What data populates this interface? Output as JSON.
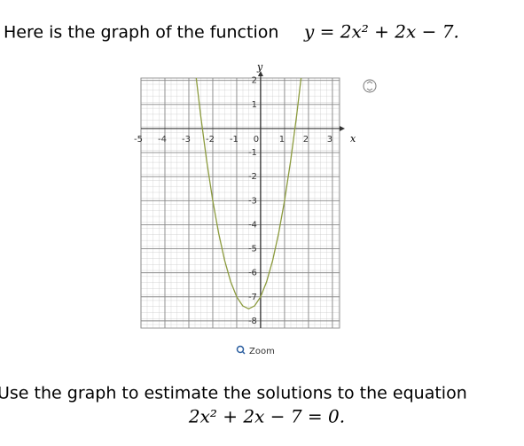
{
  "question": {
    "text": "Here is the graph of the function",
    "equation": "y = 2x² + 2x − 7."
  },
  "chart_data": {
    "type": "line",
    "x_label": "x",
    "y_label": "y",
    "x": [
      -2.7,
      -2.5,
      -2.25,
      -2,
      -1.75,
      -1.5,
      -1.25,
      -1,
      -0.75,
      -0.5,
      -0.25,
      0,
      0.25,
      0.5,
      0.75,
      1,
      1.25,
      1.5,
      1.7
    ],
    "series": [
      {
        "color": "#8c9b3e",
        "values": [
          2.18,
          0.5,
          -1.375,
          -3,
          -4.375,
          -5.5,
          -6.375,
          -7,
          -7.375,
          -7.5,
          -7.375,
          -7,
          -6.375,
          -5.5,
          -4.375,
          -3,
          -1.375,
          0.5,
          2.18
        ]
      }
    ],
    "xlim": [
      -5,
      3.3
    ],
    "ylim": [
      -8.3,
      2.1
    ],
    "xticks": [
      -5,
      -4,
      -3,
      -2,
      -1,
      0,
      1,
      2,
      3
    ],
    "yticks": [
      -8,
      -7,
      -6,
      -5,
      -4,
      -3,
      -2,
      -1,
      1,
      2
    ],
    "grid": true
  },
  "zoom": "Zoom",
  "prompt": {
    "text": "Use the graph to estimate the solutions to the equation",
    "equation": "2x² + 2x − 7 = 0."
  }
}
